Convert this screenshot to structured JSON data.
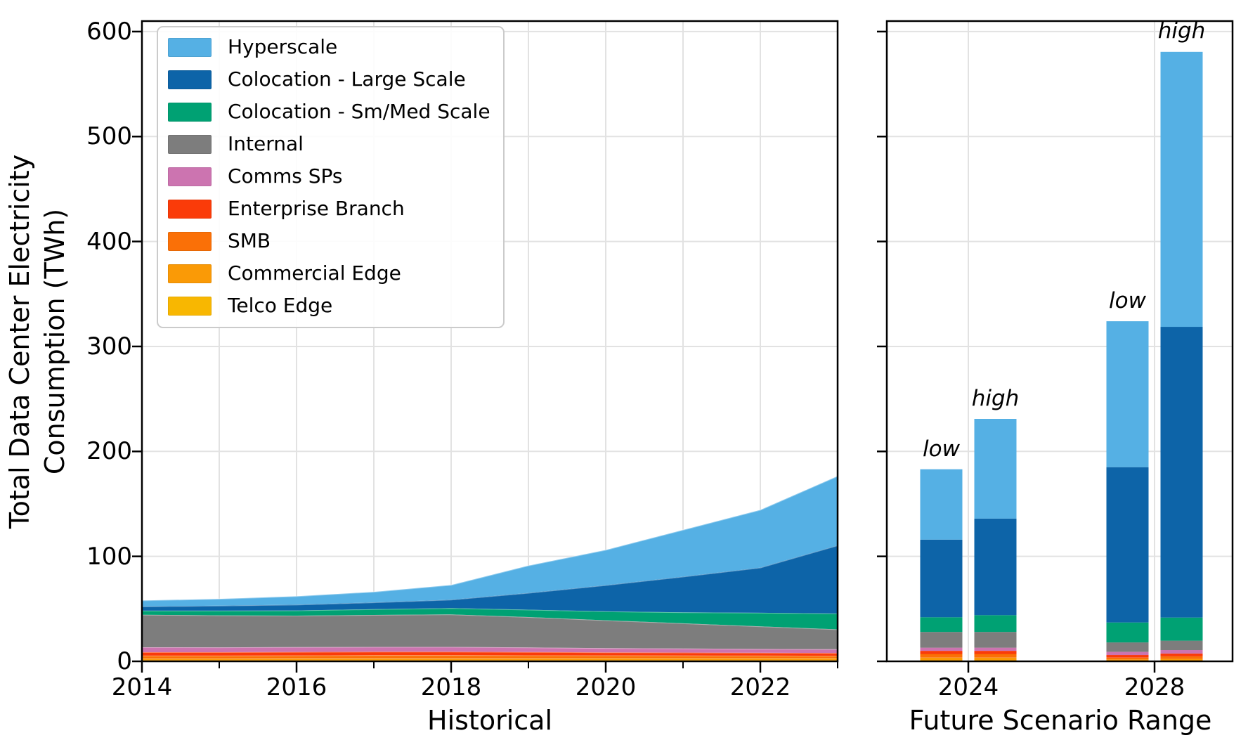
{
  "figure": {
    "background": "#ffffff"
  },
  "colors": {
    "grid": "#e2e2e2",
    "spine": "#000000",
    "text": "#000000",
    "area_edge_highlight": "rgba(255,255,255,0.35)"
  },
  "legend": {
    "items": [
      {
        "label": "Hyperscale",
        "color": "#55B0E4"
      },
      {
        "label": "Colocation - Large Scale",
        "color": "#0D64A8"
      },
      {
        "label": "Colocation - Sm/Med Scale",
        "color": "#00A173"
      },
      {
        "label": "Internal",
        "color": "#7D7D7D"
      },
      {
        "label": "Comms SPs",
        "color": "#CC74B0"
      },
      {
        "label": "Enterprise Branch",
        "color": "#FA3B09"
      },
      {
        "label": "SMB",
        "color": "#FA7007"
      },
      {
        "label": "Commercial Edge",
        "color": "#FA9A06"
      },
      {
        "label": "Telco Edge",
        "color": "#F8B701"
      }
    ]
  },
  "chart_data": [
    {
      "type": "area",
      "stacked": true,
      "title": "",
      "xlabel": "Historical",
      "ylabel": "Total Data Center Electricity\nConsumption (TWh)",
      "x": [
        2014,
        2015,
        2016,
        2017,
        2018,
        2019,
        2020,
        2021,
        2022,
        2023
      ],
      "xticks_labeled": [
        2014,
        2016,
        2018,
        2020,
        2022
      ],
      "xticks_minor": [
        2015,
        2017,
        2019,
        2021,
        2023
      ],
      "ylim": [
        0,
        610
      ],
      "yticks": [
        0,
        100,
        200,
        300,
        400,
        500,
        600
      ],
      "grid": true,
      "legend_position": "upper left",
      "series": [
        {
          "name": "Telco Edge",
          "color": "#F8B701",
          "values": [
            0.8,
            0.8,
            0.8,
            0.9,
            0.9,
            0.9,
            1.0,
            1.0,
            1.0,
            1.0
          ]
        },
        {
          "name": "Commercial Edge",
          "color": "#FA9A06",
          "values": [
            1.9,
            1.9,
            2.0,
            2.0,
            2.0,
            2.0,
            2.0,
            2.0,
            2.0,
            2.0
          ]
        },
        {
          "name": "SMB",
          "color": "#FA7007",
          "values": [
            2.7,
            2.7,
            2.8,
            2.9,
            2.9,
            2.8,
            2.6,
            2.5,
            2.4,
            2.3
          ]
        },
        {
          "name": "Enterprise Branch",
          "color": "#FA3B09",
          "values": [
            3.3,
            3.3,
            3.4,
            3.4,
            3.4,
            3.2,
            3.0,
            2.9,
            2.8,
            2.7
          ]
        },
        {
          "name": "Comms SPs",
          "color": "#CC74B0",
          "values": [
            4.7,
            4.6,
            4.5,
            4.5,
            4.5,
            4.3,
            4.0,
            3.8,
            3.6,
            3.5
          ]
        },
        {
          "name": "Internal",
          "color": "#7D7D7D",
          "values": [
            30.9,
            30.5,
            30.0,
            30.5,
            31.0,
            29.0,
            26.5,
            24.0,
            21.5,
            19.0
          ]
        },
        {
          "name": "Colocation - Sm/Med Scale",
          "color": "#00A173",
          "values": [
            4.0,
            4.5,
            5.0,
            5.5,
            6.0,
            7.0,
            8.5,
            10.5,
            13.0,
            15.0
          ]
        },
        {
          "name": "Colocation - Large Scale",
          "color": "#0D64A8",
          "values": [
            4.0,
            4.7,
            5.5,
            6.5,
            8.0,
            16.0,
            25.0,
            34.0,
            43.0,
            65.0
          ]
        },
        {
          "name": "Hyperscale",
          "color": "#55B0E4",
          "values": [
            5.7,
            6.5,
            8.0,
            10.0,
            14.0,
            26.0,
            33.5,
            44.5,
            55.0,
            66.0
          ]
        }
      ],
      "totals": [
        58,
        59.5,
        62,
        66.2,
        72.7,
        91.2,
        106.1,
        125.2,
        144.3,
        176.5
      ]
    },
    {
      "type": "bar",
      "stacked": true,
      "title": "",
      "xlabel": "Future Scenario Range",
      "ylim": [
        0,
        610
      ],
      "yticks": [
        0,
        100,
        200,
        300,
        400,
        500,
        600
      ],
      "grid": true,
      "series": [
        {
          "name": "Telco Edge",
          "color": "#F8B701"
        },
        {
          "name": "Commercial Edge",
          "color": "#FA9A06"
        },
        {
          "name": "SMB",
          "color": "#FA7007"
        },
        {
          "name": "Enterprise Branch",
          "color": "#FA3B09"
        },
        {
          "name": "Comms SPs",
          "color": "#CC74B0"
        },
        {
          "name": "Internal",
          "color": "#7D7D7D"
        },
        {
          "name": "Colocation - Sm/Med Scale",
          "color": "#00A173"
        },
        {
          "name": "Colocation - Large Scale",
          "color": "#0D64A8"
        },
        {
          "name": "Hyperscale",
          "color": "#55B0E4"
        }
      ],
      "groups": [
        {
          "label": "2024",
          "bars": [
            {
              "annotation": "low",
              "total": 183,
              "values": [
                1.0,
                2.5,
                3.5,
                3.0,
                3.0,
                15.0,
                14.0,
                74.0,
                67.0
              ]
            },
            {
              "annotation": "high",
              "total": 231,
              "values": [
                1.0,
                2.5,
                3.5,
                3.0,
                3.0,
                15.0,
                16.0,
                92.0,
                95.0
              ]
            }
          ]
        },
        {
          "label": "2028",
          "bars": [
            {
              "annotation": "low",
              "total": 324,
              "values": [
                0.5,
                1.3,
                1.7,
                2.5,
                3.0,
                9.0,
                19.0,
                148.0,
                139.0
              ]
            },
            {
              "annotation": "high",
              "total": 581,
              "values": [
                0.6,
                1.7,
                2.4,
                2.7,
                3.3,
                9.0,
                22.0,
                277.0,
                262.0
              ]
            }
          ]
        }
      ]
    }
  ]
}
